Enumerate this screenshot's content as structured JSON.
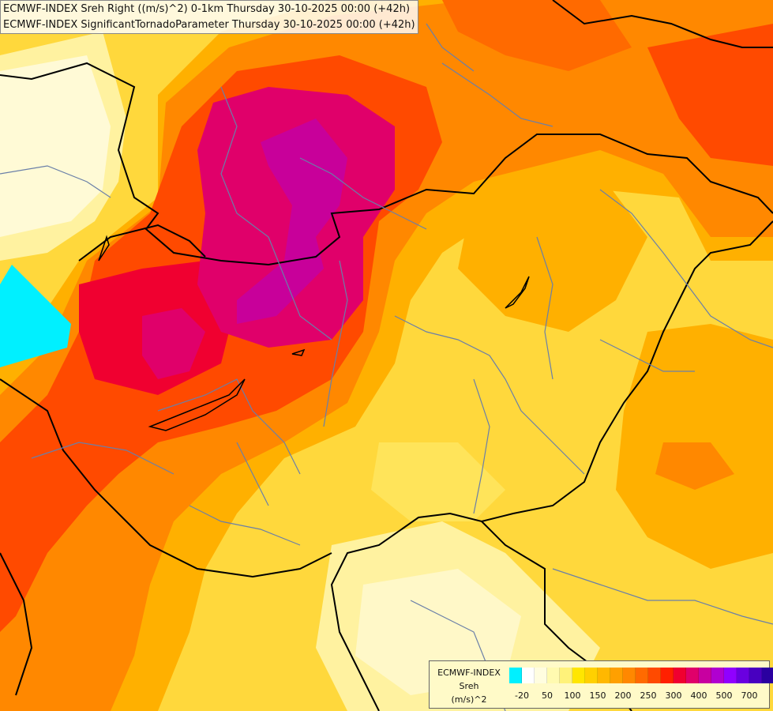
{
  "header": {
    "line1": "ECMWF-INDEX Sreh Right ((m/s)^2) 0-1km Thursday 30-10-2025 00:00 (+42h)",
    "line2": "ECMWF-INDEX SignificantTornadoParameter Thursday 30-10-2025 00:00 (+42h)"
  },
  "legend": {
    "title1": "ECMWF-INDEX",
    "title2": "Sreh",
    "title3": "(m/s)^2",
    "colors": [
      "#00f0ff",
      "#ffffff",
      "#fffde0",
      "#fffab0",
      "#fff27a",
      "#ffe600",
      "#ffd000",
      "#ffb800",
      "#ffa000",
      "#ff8800",
      "#ff6a00",
      "#ff4a00",
      "#ff2000",
      "#f00030",
      "#e0006a",
      "#c800a0",
      "#b000d0",
      "#9000ff",
      "#6a00e0",
      "#4800c0",
      "#2a00a0",
      "#100080"
    ],
    "ticks": [
      "-20",
      "50",
      "100",
      "150",
      "200",
      "250",
      "300",
      "400",
      "500",
      "700"
    ]
  },
  "map_colors": {
    "yellow": "#ffd83c",
    "light_yellow": "#fff8b0",
    "cream": "#fff8d0",
    "orange": "#ffb000",
    "dark_orange": "#ff7a00",
    "red": "#ff3000",
    "magenta": "#e0006a",
    "purple": "#c800a0",
    "cyan": "#00f0ff"
  }
}
